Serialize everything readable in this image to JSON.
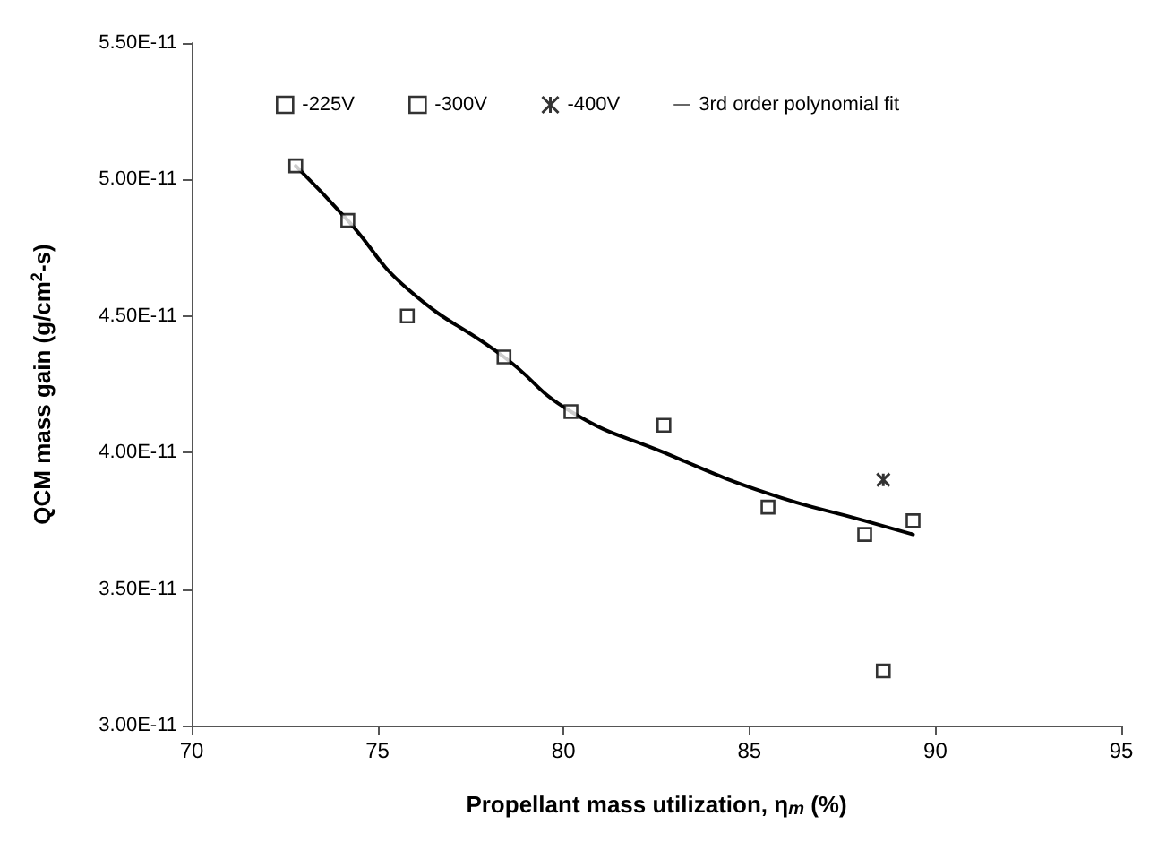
{
  "chart_data": {
    "type": "scatter",
    "xlabel": "Propellant mass utilization, η$_{m}$ (%)",
    "ylabel": "QCM mass gain (g/cm$^{2}$-s)",
    "xlim": [
      70,
      95
    ],
    "xticks": [
      70,
      75,
      80,
      85,
      90,
      95
    ],
    "ylim": [
      3e-11,
      5.5e-11
    ],
    "yticks": [
      {
        "value": 3e-11,
        "label": "3.00E-11"
      },
      {
        "value": 3.5e-11,
        "label": "3.50E-11"
      },
      {
        "value": 4e-11,
        "label": "4.00E-11"
      },
      {
        "value": 4.5e-11,
        "label": "4.50E-11"
      },
      {
        "value": 5e-11,
        "label": "5.00E-11"
      },
      {
        "value": 5.5e-11,
        "label": "5.50E-11"
      }
    ],
    "grid": false,
    "legend": "top",
    "series": [
      {
        "name": "-225V",
        "color": "#000000",
        "marker": "square",
        "x": [
          72.8,
          74.2,
          75.8,
          78.4,
          80.2,
          82.7,
          85.5,
          88.1,
          89.4
        ],
        "values": [
          5.05e-11,
          4.85e-11,
          4.5e-11,
          4.35e-11,
          4.15e-11,
          4.1e-11,
          3.8e-11,
          3.7e-11,
          3.75e-11
        ]
      },
      {
        "name": "-300V",
        "color": "#000000",
        "marker": "square",
        "x": [
          88.6
        ],
        "values": [
          3.2e-11
        ]
      },
      {
        "name": "-400V",
        "color": "#000000",
        "marker": "cross",
        "x": [
          88.6
        ],
        "values": [
          3.9e-11
        ]
      },
      {
        "name": "3rd order polynomial fit",
        "type": "line",
        "color": "#000000",
        "marker": "none",
        "line_style": "solid",
        "x": [
          72.8,
          74.2,
          75.8,
          78.4,
          80.2,
          82.7,
          85.5,
          88.1,
          89.4
        ],
        "values": [
          5.05e-11,
          4.85e-11,
          4.6e-11,
          4.35e-11,
          4.15e-11,
          4e-11,
          3.85e-11,
          3.75e-11,
          3.7e-11
        ]
      }
    ]
  }
}
